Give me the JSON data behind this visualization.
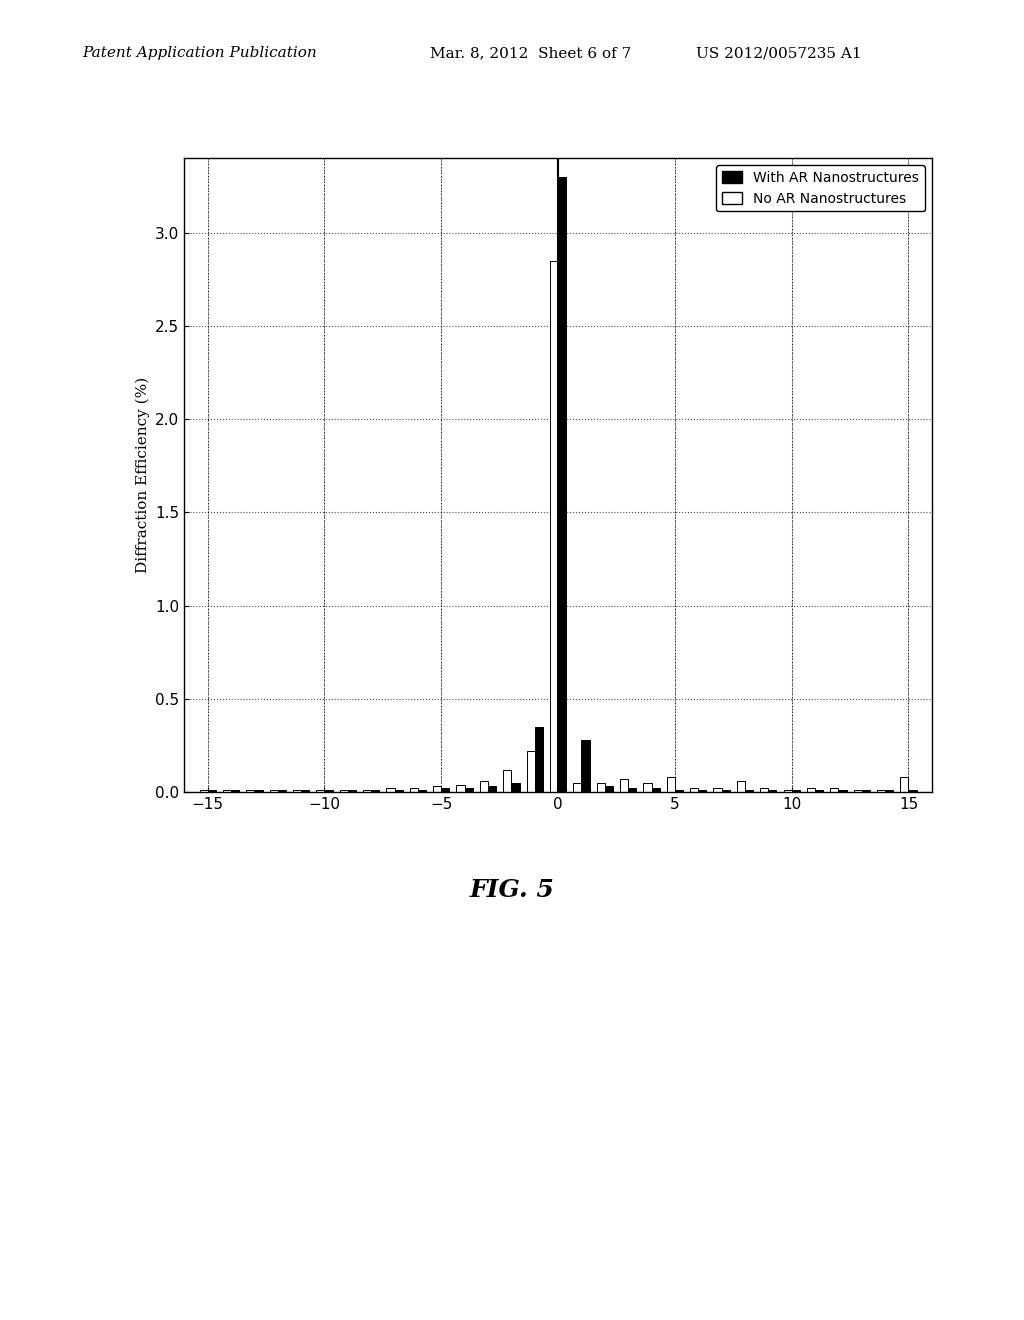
{
  "title": "FIG. 5",
  "ylabel": "Diffraction Efficiency (%)",
  "xlabel": "",
  "xlim": [
    -16,
    16
  ],
  "ylim": [
    0,
    3.4
  ],
  "yticks": [
    0,
    0.5,
    1,
    1.5,
    2,
    2.5,
    3
  ],
  "xticks": [
    -15,
    -10,
    -5,
    0,
    5,
    10,
    15
  ],
  "header_left": "Patent Application Publication",
  "header_mid": "Mar. 8, 2012  Sheet 6 of 7",
  "header_right": "US 2012/0057235 A1",
  "legend_labels": [
    "With AR Nanostructures",
    "No AR Nanostructures"
  ],
  "legend_colors": [
    "black",
    "white"
  ],
  "bar_width": 0.35,
  "orders": [
    -15,
    -14,
    -13,
    -12,
    -11,
    -10,
    -9,
    -8,
    -7,
    -6,
    -5,
    -4,
    -3,
    -2,
    -1,
    0,
    1,
    2,
    3,
    4,
    5,
    6,
    7,
    8,
    9,
    10,
    11,
    12,
    13,
    14,
    15
  ],
  "with_ar": [
    0.01,
    0.01,
    0.01,
    0.01,
    0.01,
    0.01,
    0.01,
    0.01,
    0.01,
    0.01,
    0.02,
    0.02,
    0.03,
    0.05,
    0.35,
    3.3,
    0.28,
    0.03,
    0.02,
    0.02,
    0.01,
    0.01,
    0.01,
    0.01,
    0.01,
    0.01,
    0.01,
    0.01,
    0.01,
    0.01,
    0.01
  ],
  "no_ar": [
    0.01,
    0.01,
    0.01,
    0.01,
    0.01,
    0.01,
    0.01,
    0.01,
    0.02,
    0.02,
    0.03,
    0.04,
    0.06,
    0.12,
    0.22,
    2.85,
    0.05,
    0.05,
    0.07,
    0.05,
    0.08,
    0.02,
    0.02,
    0.06,
    0.02,
    0.01,
    0.02,
    0.02,
    0.01,
    0.01,
    0.08
  ],
  "background_color": "#ffffff",
  "figure_bg": "#ffffff"
}
